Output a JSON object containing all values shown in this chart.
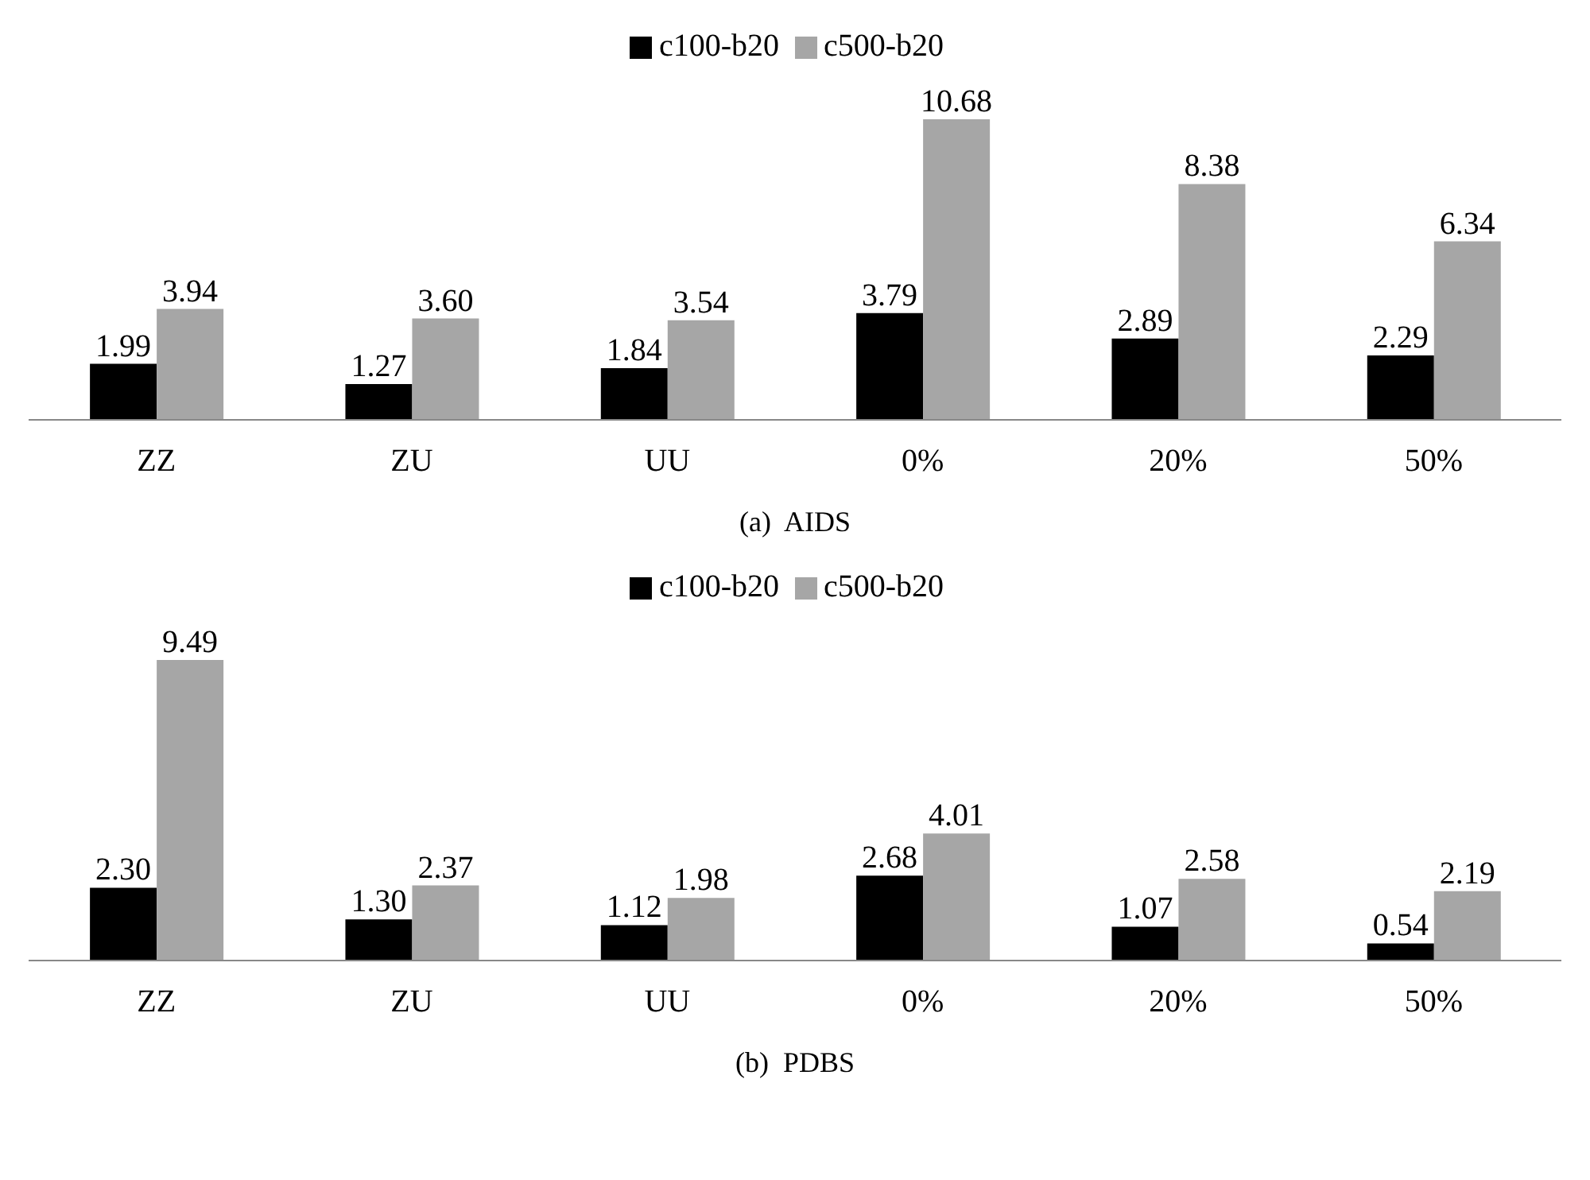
{
  "chart_data": [
    {
      "type": "bar",
      "xlabel": "(a)  AIDS",
      "categories": [
        "ZZ",
        "ZU",
        "UU",
        "0%",
        "20%",
        "50%"
      ],
      "series": [
        {
          "name": "c100-b20",
          "color": "#000000",
          "values": [
            1.99,
            1.27,
            1.84,
            3.79,
            2.89,
            2.29
          ],
          "value_labels": [
            "1.99",
            "1.27",
            "1.84",
            "3.79",
            "2.89",
            "2.29"
          ]
        },
        {
          "name": "c500-b20",
          "color": "#a6a6a6",
          "values": [
            3.94,
            3.6,
            3.54,
            10.68,
            8.38,
            6.34
          ],
          "value_labels": [
            "3.94",
            "3.60",
            "3.54",
            "10.68",
            "8.38",
            "6.34"
          ]
        }
      ],
      "legend": "top",
      "tick_labels": "x"
    },
    {
      "type": "bar",
      "xlabel": "(b)  PDBS",
      "categories": [
        "ZZ",
        "ZU",
        "UU",
        "0%",
        "20%",
        "50%"
      ],
      "series": [
        {
          "name": "c100-b20",
          "color": "#000000",
          "values": [
            2.3,
            1.3,
            1.12,
            2.68,
            1.07,
            0.54
          ],
          "value_labels": [
            "2.30",
            "1.30",
            "1.12",
            "2.68",
            "1.07",
            "0.54"
          ]
        },
        {
          "name": "c500-b20",
          "color": "#a6a6a6",
          "values": [
            9.49,
            2.37,
            1.98,
            4.01,
            2.58,
            2.19
          ],
          "value_labels": [
            "9.49",
            "2.37",
            "1.98",
            "4.01",
            "2.58",
            "2.19"
          ]
        }
      ],
      "legend": "top",
      "tick_labels": "x"
    }
  ]
}
